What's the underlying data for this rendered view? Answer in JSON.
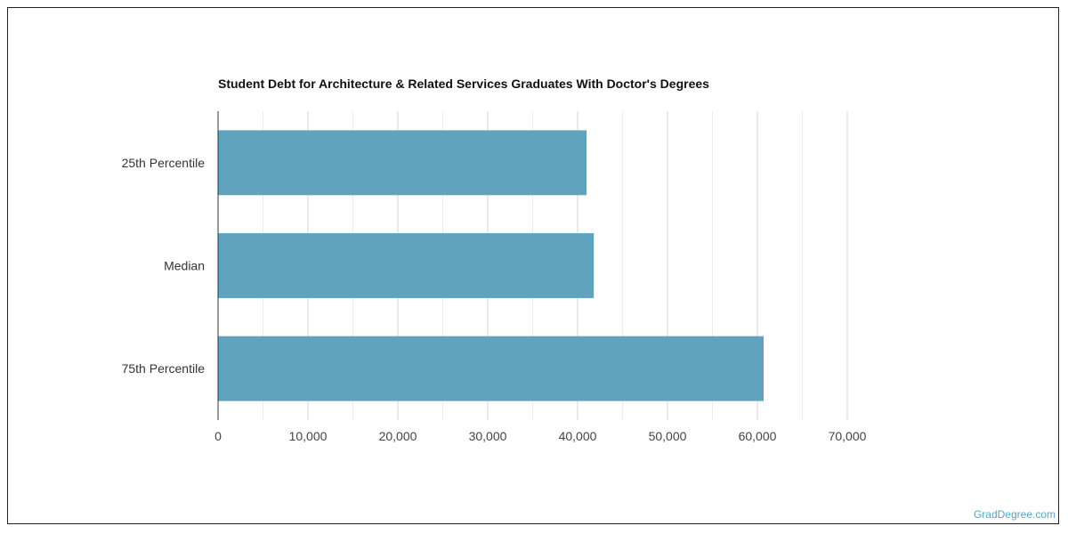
{
  "chart_data": {
    "type": "bar",
    "orientation": "horizontal",
    "title": "Student Debt for Architecture & Related Services Graduates With Doctor's Degrees",
    "categories": [
      "25th Percentile",
      "Median",
      "75th Percentile"
    ],
    "values": [
      41000,
      41800,
      60700
    ],
    "xlim": [
      0,
      70000
    ],
    "xticks": [
      0,
      10000,
      20000,
      30000,
      40000,
      50000,
      60000,
      70000
    ],
    "xtick_labels": [
      "0",
      "10,000",
      "20,000",
      "30,000",
      "40,000",
      "50,000",
      "60,000",
      "70,000"
    ],
    "bar_color": "#5fa3bf",
    "grid": true
  },
  "watermark": "GradDegree.com"
}
